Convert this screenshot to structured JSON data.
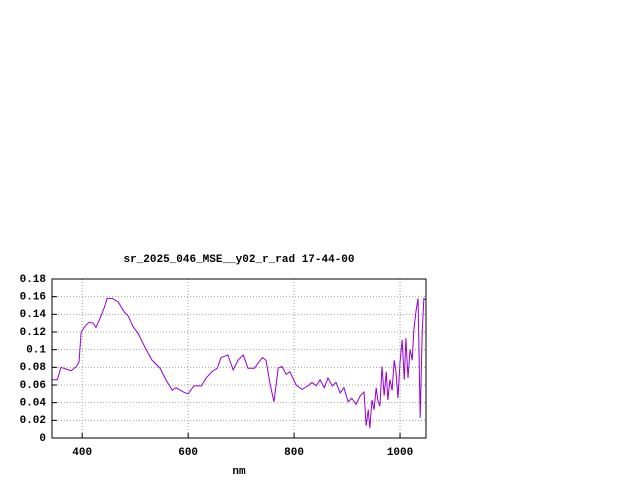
{
  "chart_data": {
    "type": "line",
    "title": "sr_2025_046_MSE__y02_r_rad 17-44-00",
    "x_label": "nm",
    "xlim": [
      343,
      1049
    ],
    "xticks": [
      400,
      600,
      800,
      1000
    ],
    "ylim": [
      0,
      0.18
    ],
    "yticks": [
      0,
      0.02,
      0.04,
      0.06,
      0.08,
      0.1,
      0.12,
      0.14,
      0.16,
      0.18
    ],
    "grid": true,
    "x": [
      343,
      353,
      360,
      370,
      379,
      389,
      394,
      398,
      406,
      413,
      421,
      426,
      434,
      442,
      447,
      457,
      468,
      479,
      487,
      496,
      506,
      519,
      532,
      547,
      558,
      570,
      577,
      591,
      600,
      611,
      625,
      634,
      645,
      655,
      662,
      675,
      685,
      694,
      704,
      713,
      725,
      740,
      747,
      755,
      762,
      770,
      777,
      785,
      792,
      804,
      815,
      826,
      834,
      842,
      849,
      857,
      864,
      872,
      879,
      887,
      894,
      902,
      909,
      917,
      925,
      932,
      936,
      940,
      943,
      947,
      951,
      955,
      958,
      962,
      966,
      970,
      974,
      977,
      981,
      985,
      989,
      992,
      996,
      1000,
      1004,
      1008,
      1011,
      1015,
      1019,
      1023,
      1026,
      1030,
      1034,
      1038,
      1042,
      1045,
      1049
    ],
    "series": [
      {
        "color": "#9400d3",
        "values": [
          0.066,
          0.066,
          0.08,
          0.078,
          0.076,
          0.081,
          0.086,
          0.12,
          0.127,
          0.131,
          0.13,
          0.125,
          0.136,
          0.148,
          0.158,
          0.158,
          0.154,
          0.143,
          0.138,
          0.126,
          0.118,
          0.102,
          0.088,
          0.079,
          0.066,
          0.054,
          0.057,
          0.052,
          0.05,
          0.059,
          0.059,
          0.068,
          0.075,
          0.079,
          0.091,
          0.094,
          0.077,
          0.088,
          0.094,
          0.079,
          0.079,
          0.091,
          0.088,
          0.06,
          0.041,
          0.079,
          0.081,
          0.072,
          0.075,
          0.06,
          0.055,
          0.059,
          0.063,
          0.059,
          0.066,
          0.057,
          0.068,
          0.059,
          0.063,
          0.051,
          0.057,
          0.041,
          0.045,
          0.038,
          0.048,
          0.052,
          0.014,
          0.032,
          0.011,
          0.043,
          0.032,
          0.057,
          0.043,
          0.036,
          0.081,
          0.048,
          0.075,
          0.043,
          0.066,
          0.054,
          0.088,
          0.077,
          0.045,
          0.086,
          0.111,
          0.066,
          0.113,
          0.068,
          0.1,
          0.088,
          0.122,
          0.143,
          0.158,
          0.023,
          0.122,
          0.158,
          0.156
        ]
      }
    ]
  }
}
